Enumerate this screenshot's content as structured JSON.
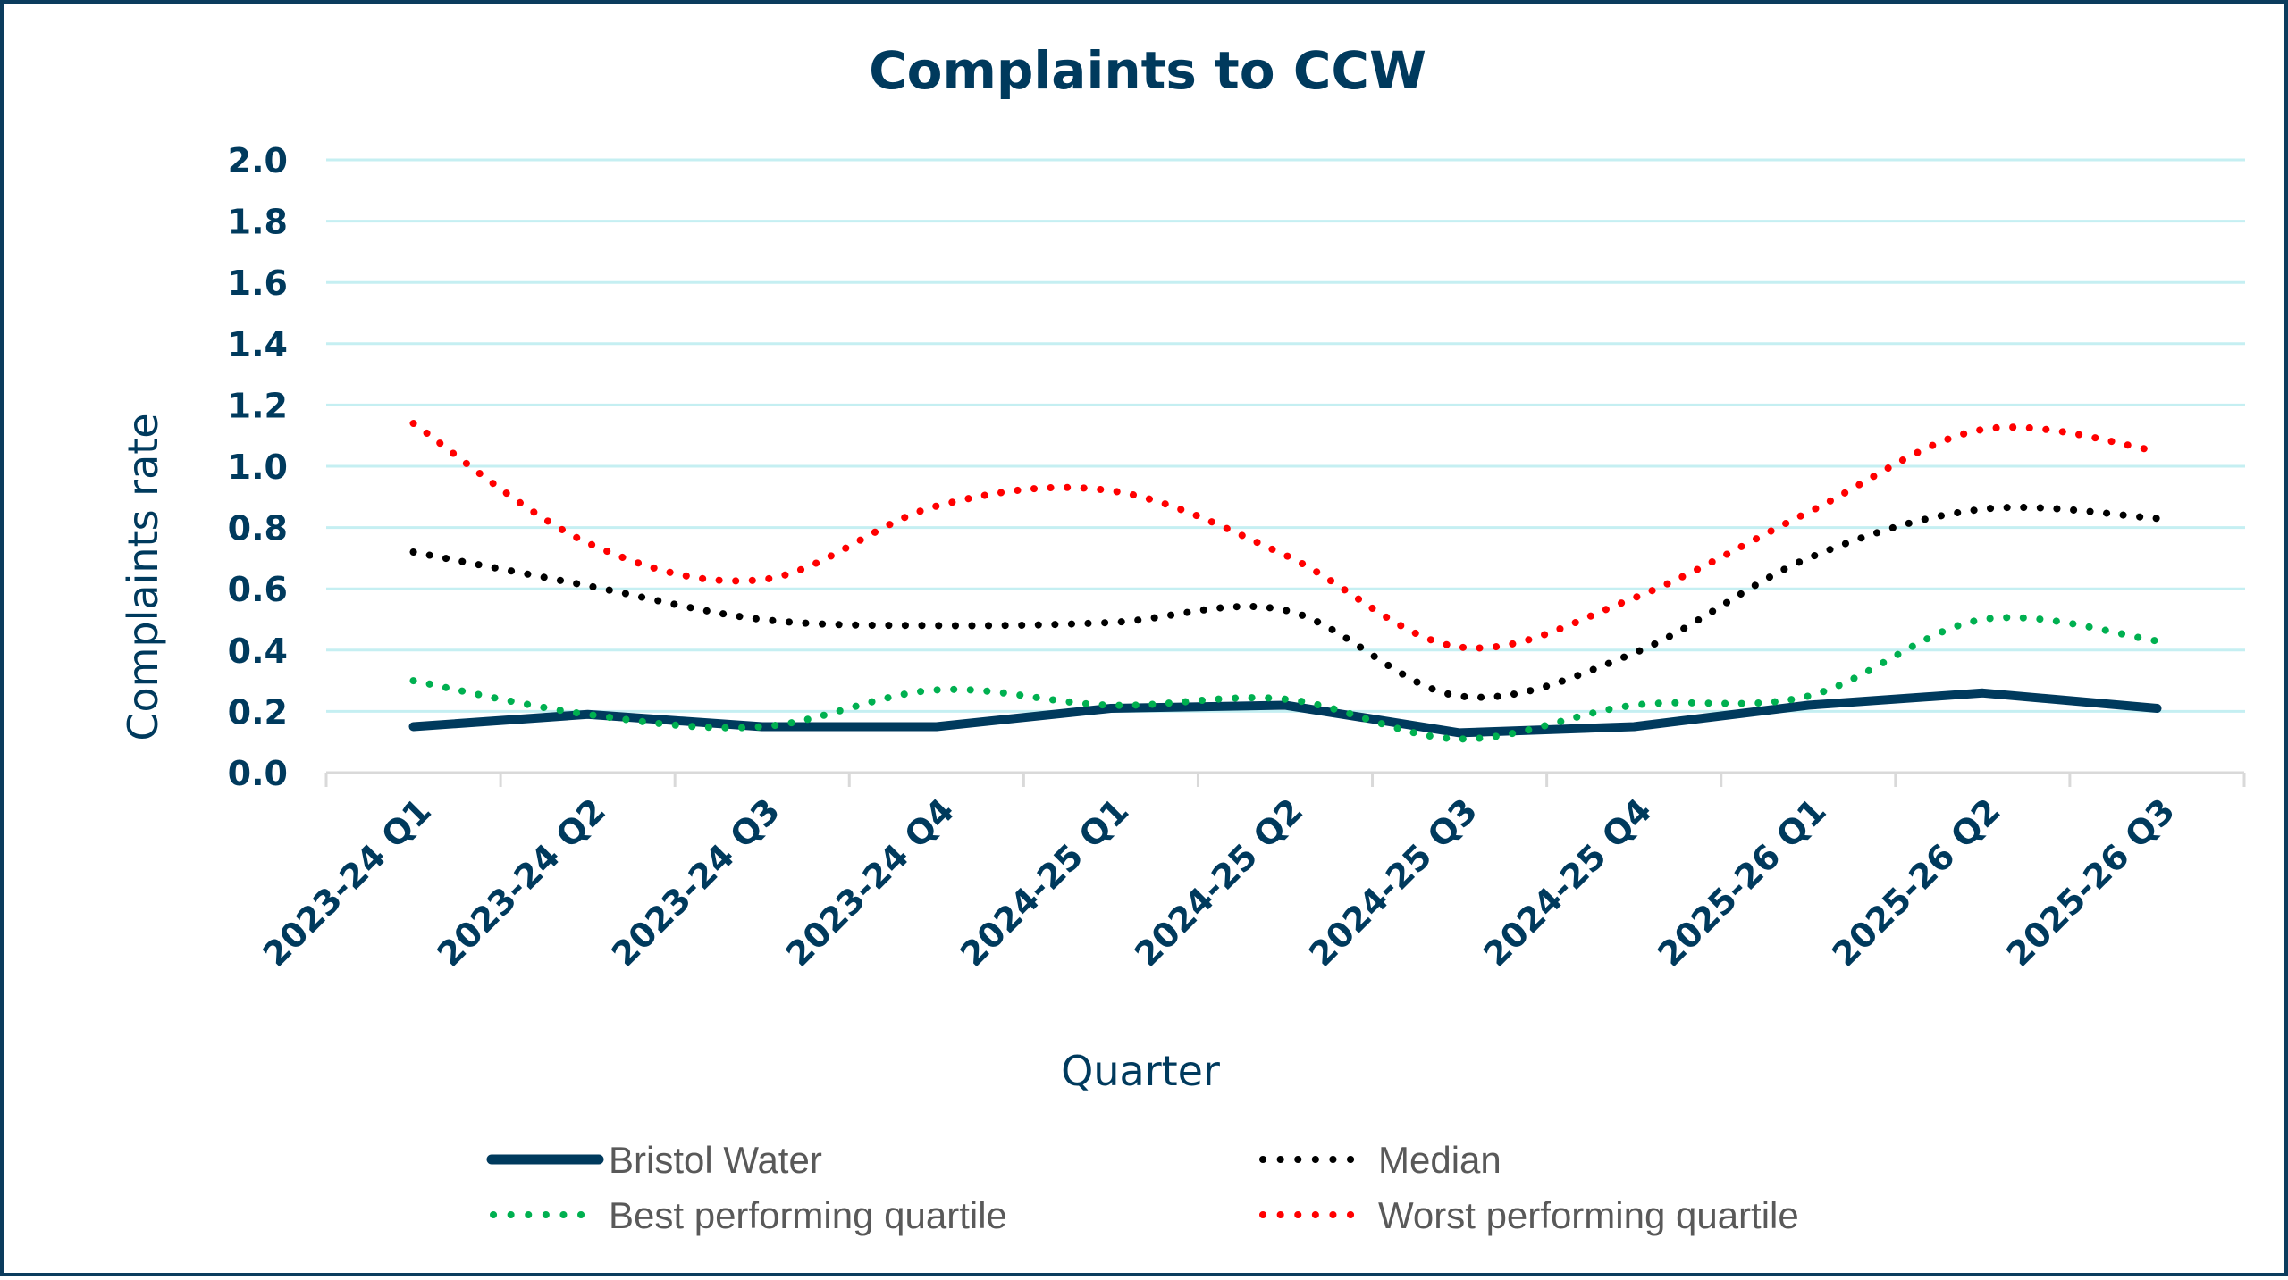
{
  "chart_data": {
    "type": "line",
    "title": "Complaints to CCW",
    "xlabel": "Quarter",
    "ylabel": "Complaints rate",
    "ylim": [
      0,
      2.0
    ],
    "yticks": [
      "0.0",
      "0.2",
      "0.4",
      "0.6",
      "0.8",
      "1.0",
      "1.2",
      "1.4",
      "1.6",
      "1.8",
      "2.0"
    ],
    "grid": true,
    "legend_position": "bottom",
    "categories": [
      "2023-24 Q1",
      "2023-24 Q2",
      "2023-24 Q3",
      "2023-24 Q4",
      "2024-25 Q1",
      "2024-25 Q2",
      "2024-25 Q3",
      "2024-25 Q4",
      "2025-26 Q1",
      "2025-26 Q2",
      "2025-26 Q3"
    ],
    "series": [
      {
        "name": "Bristol Water",
        "style": "solid",
        "smooth": false,
        "color": "#003A5D",
        "values": [
          0.15,
          0.19,
          0.15,
          0.15,
          0.21,
          0.22,
          0.13,
          0.15,
          0.22,
          0.26,
          0.21
        ]
      },
      {
        "name": "Median",
        "style": "dotted",
        "smooth": true,
        "color": "#000000",
        "values": [
          0.72,
          0.61,
          0.5,
          0.48,
          0.49,
          0.53,
          0.25,
          0.39,
          0.7,
          0.86,
          0.83
        ]
      },
      {
        "name": "Best performing quartile",
        "style": "dotted",
        "smooth": true,
        "color": "#00B050",
        "values": [
          0.3,
          0.19,
          0.15,
          0.27,
          0.22,
          0.24,
          0.11,
          0.22,
          0.25,
          0.5,
          0.43
        ]
      },
      {
        "name": "Worst performing quartile",
        "style": "dotted",
        "smooth": true,
        "color": "#FF0000",
        "values": [
          1.14,
          0.75,
          0.63,
          0.87,
          0.92,
          0.71,
          0.41,
          0.57,
          0.85,
          1.12,
          1.05
        ]
      }
    ]
  },
  "colors": {
    "text": "#003A5D",
    "gridline": "#C5EFF2",
    "axis": "#D9D9D9",
    "legend_text": "#595959",
    "border": "#0B3C5D"
  }
}
